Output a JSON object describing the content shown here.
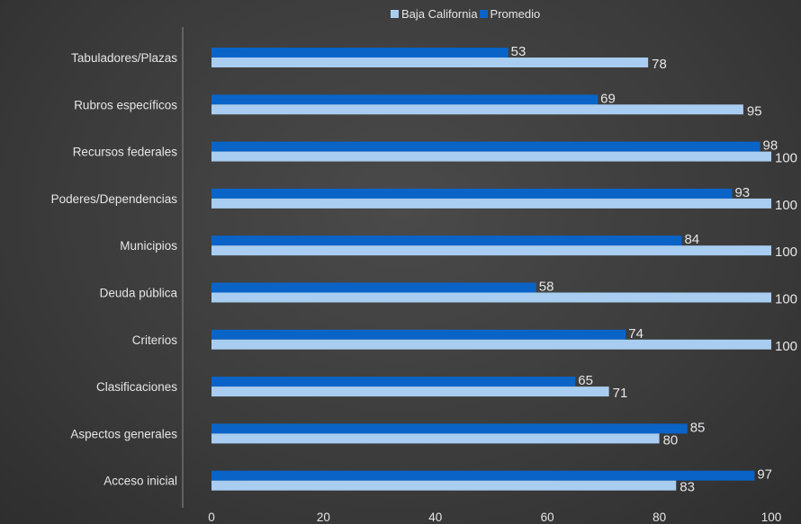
{
  "chart_data": {
    "type": "bar",
    "orientation": "horizontal",
    "categories": [
      "Tabuladores/Plazas",
      "Rubros específicos",
      "Recursos federales",
      "Poderes/Dependencias",
      "Municipios",
      "Deuda pública",
      "Criterios",
      "Clasificaciones",
      "Aspectos generales",
      "Acceso inicial"
    ],
    "series": [
      {
        "name": "Baja California",
        "values": [
          78,
          95,
          100,
          100,
          100,
          100,
          100,
          71,
          80,
          83
        ]
      },
      {
        "name": "Promedio",
        "values": [
          53,
          69,
          98,
          93,
          84,
          58,
          74,
          65,
          85,
          97
        ]
      }
    ],
    "xlim": [
      0,
      100
    ],
    "xticks": [
      0,
      20,
      40,
      60,
      80,
      100
    ],
    "grid": false,
    "legend_position": "top"
  },
  "colors": {
    "baja_california": "#a9cdf0",
    "promedio": "#0a64c8",
    "text": "#e6e6e6",
    "axis": "#8a8a8a"
  }
}
